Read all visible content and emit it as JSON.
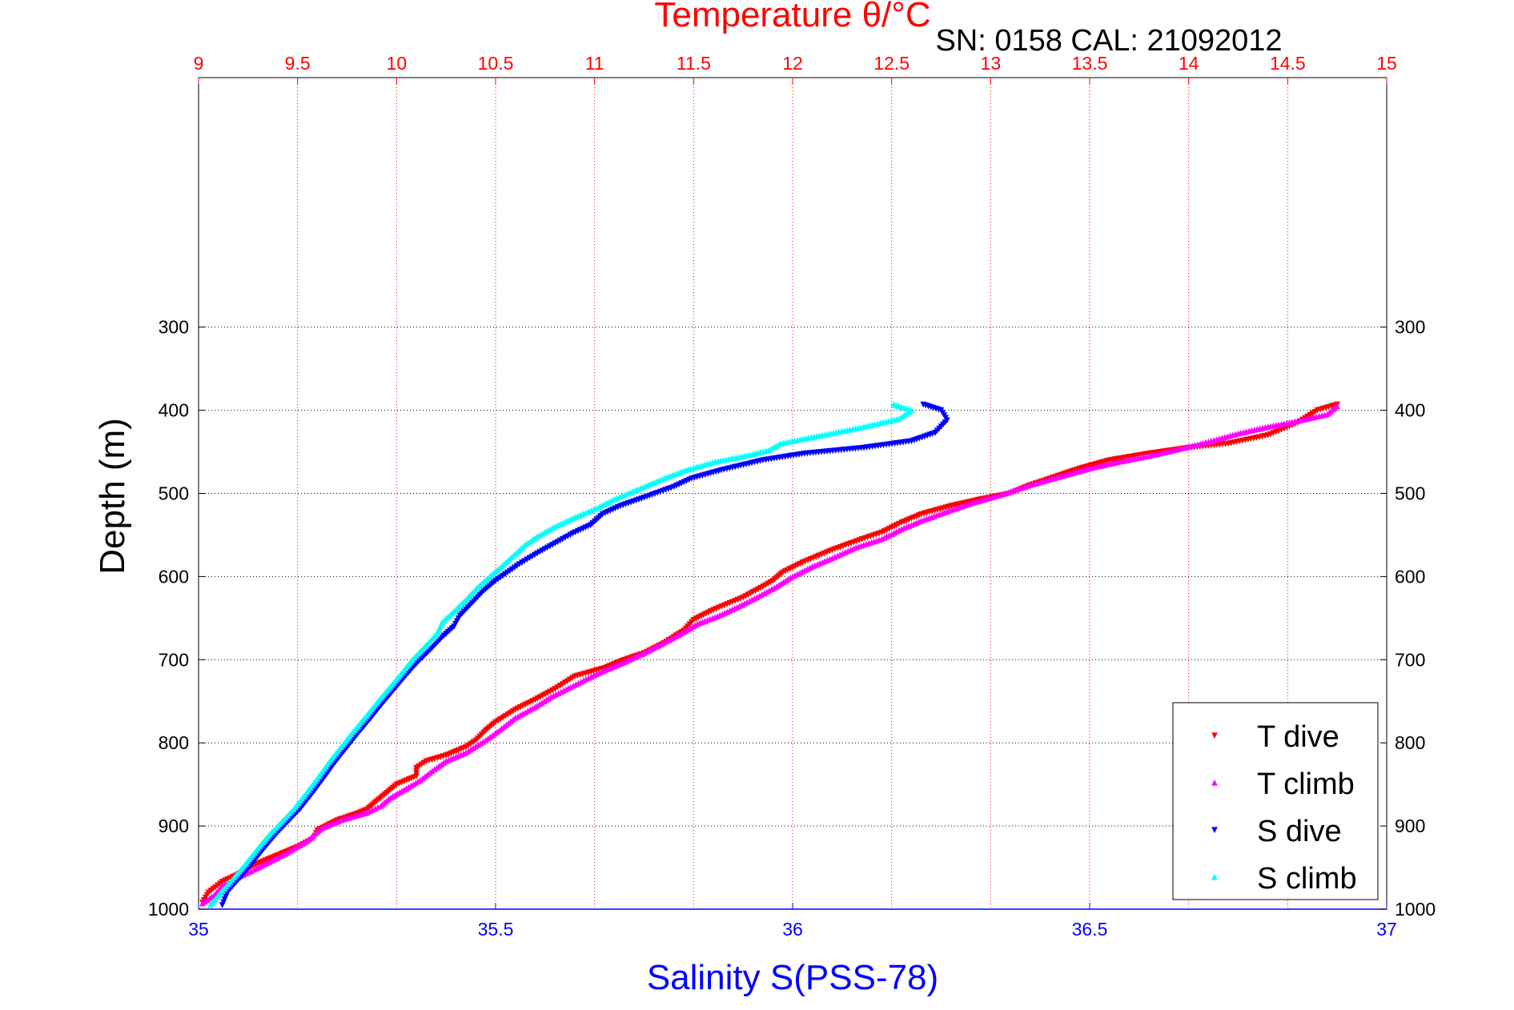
{
  "chart_data": {
    "type": "scatter",
    "title": "Temperature θ/°C",
    "subtitle": "SN: 0158  CAL: 21092012",
    "xlabel": "Salinity S(PSS-78)",
    "ylabel": "Depth (m)",
    "x_bottom": {
      "label": "Salinity S(PSS-78)",
      "range": [
        35,
        37
      ],
      "ticks": [
        35,
        35.5,
        36,
        36.5,
        37
      ],
      "tick_labels": [
        "35",
        "35.5",
        "36",
        "36.5",
        "37"
      ],
      "color": "#0000ff"
    },
    "x_top": {
      "label": "Temperature θ/°C",
      "range": [
        9,
        15
      ],
      "ticks": [
        9,
        9.5,
        10,
        10.5,
        11,
        11.5,
        12,
        12.5,
        13,
        13.5,
        14,
        14.5,
        15
      ],
      "tick_labels": [
        "9",
        "9.5",
        "10",
        "10.5",
        "11",
        "11.5",
        "12",
        "12.5",
        "13",
        "13.5",
        "14",
        "14.5",
        "15"
      ],
      "color": "#ff0000"
    },
    "y_axis": {
      "range": [
        0,
        1000
      ],
      "inverted": true,
      "ticks": [
        300,
        400,
        500,
        600,
        700,
        800,
        900,
        1000
      ],
      "tick_labels": [
        "300",
        "400",
        "500",
        "600",
        "700",
        "800",
        "900",
        "1000"
      ]
    },
    "grid": true,
    "legend_position": "bottom-right",
    "series": [
      {
        "name": "T dive",
        "axis": "top",
        "color": "#ff0000",
        "marker": "triangle-down",
        "points": [
          [
            14.75,
            393
          ],
          [
            14.65,
            400
          ],
          [
            14.55,
            415
          ],
          [
            14.4,
            430
          ],
          [
            14.2,
            440
          ],
          [
            14.0,
            445
          ],
          [
            13.8,
            452
          ],
          [
            13.6,
            460
          ],
          [
            13.45,
            470
          ],
          [
            13.3,
            482
          ],
          [
            13.2,
            490
          ],
          [
            13.1,
            500
          ],
          [
            12.95,
            507
          ],
          [
            12.8,
            515
          ],
          [
            12.65,
            525
          ],
          [
            12.55,
            535
          ],
          [
            12.45,
            547
          ],
          [
            12.35,
            555
          ],
          [
            12.2,
            568
          ],
          [
            12.05,
            583
          ],
          [
            11.95,
            595
          ],
          [
            11.9,
            605
          ],
          [
            11.85,
            612
          ],
          [
            11.75,
            625
          ],
          [
            11.6,
            640
          ],
          [
            11.5,
            652
          ],
          [
            11.45,
            665
          ],
          [
            11.35,
            680
          ],
          [
            11.25,
            692
          ],
          [
            11.15,
            700
          ],
          [
            11.05,
            710
          ],
          [
            10.9,
            720
          ],
          [
            10.8,
            735
          ],
          [
            10.7,
            748
          ],
          [
            10.6,
            760
          ],
          [
            10.5,
            775
          ],
          [
            10.45,
            785
          ],
          [
            10.4,
            797
          ],
          [
            10.35,
            805
          ],
          [
            10.25,
            815
          ],
          [
            10.15,
            822
          ],
          [
            10.1,
            830
          ],
          [
            10.1,
            840
          ],
          [
            10.0,
            850
          ],
          [
            9.95,
            860
          ],
          [
            9.9,
            870
          ],
          [
            9.85,
            880
          ],
          [
            9.8,
            885
          ],
          [
            9.7,
            893
          ],
          [
            9.6,
            905
          ],
          [
            9.58,
            915
          ],
          [
            9.5,
            925
          ],
          [
            9.4,
            935
          ],
          [
            9.3,
            945
          ],
          [
            9.2,
            958
          ],
          [
            9.12,
            967
          ],
          [
            9.05,
            980
          ],
          [
            9.02,
            992
          ]
        ]
      },
      {
        "name": "T climb",
        "axis": "top",
        "color": "#ff00ff",
        "marker": "triangle-up",
        "points": [
          [
            9.02,
            993
          ],
          [
            9.08,
            983
          ],
          [
            9.12,
            972
          ],
          [
            9.2,
            962
          ],
          [
            9.32,
            948
          ],
          [
            9.45,
            932
          ],
          [
            9.55,
            918
          ],
          [
            9.62,
            903
          ],
          [
            9.72,
            893
          ],
          [
            9.85,
            884
          ],
          [
            9.92,
            876
          ],
          [
            9.97,
            866
          ],
          [
            10.05,
            855
          ],
          [
            10.12,
            845
          ],
          [
            10.18,
            834
          ],
          [
            10.25,
            822
          ],
          [
            10.35,
            812
          ],
          [
            10.45,
            797
          ],
          [
            10.52,
            785
          ],
          [
            10.6,
            770
          ],
          [
            10.7,
            757
          ],
          [
            10.78,
            745
          ],
          [
            10.88,
            733
          ],
          [
            10.97,
            722
          ],
          [
            11.05,
            713
          ],
          [
            11.15,
            703
          ],
          [
            11.25,
            692
          ],
          [
            11.35,
            680
          ],
          [
            11.45,
            667
          ],
          [
            11.52,
            657
          ],
          [
            11.62,
            648
          ],
          [
            11.72,
            637
          ],
          [
            11.82,
            625
          ],
          [
            11.92,
            612
          ],
          [
            12.0,
            600
          ],
          [
            12.1,
            588
          ],
          [
            12.2,
            578
          ],
          [
            12.32,
            565
          ],
          [
            12.45,
            555
          ],
          [
            12.55,
            543
          ],
          [
            12.65,
            533
          ],
          [
            12.78,
            522
          ],
          [
            12.9,
            512
          ],
          [
            13.05,
            502
          ],
          [
            13.2,
            490
          ],
          [
            13.35,
            480
          ],
          [
            13.5,
            470
          ],
          [
            13.65,
            462
          ],
          [
            13.8,
            455
          ],
          [
            13.95,
            447
          ],
          [
            14.1,
            438
          ],
          [
            14.25,
            428
          ],
          [
            14.4,
            420
          ],
          [
            14.55,
            413
          ],
          [
            14.7,
            405
          ],
          [
            14.75,
            395
          ]
        ]
      },
      {
        "name": "S dive",
        "axis": "bottom",
        "color": "#0000ff",
        "marker": "triangle-down",
        "points": [
          [
            36.22,
            393
          ],
          [
            36.25,
            400
          ],
          [
            36.26,
            412
          ],
          [
            36.24,
            427
          ],
          [
            36.2,
            437
          ],
          [
            36.12,
            445
          ],
          [
            36.02,
            452
          ],
          [
            35.95,
            460
          ],
          [
            35.88,
            472
          ],
          [
            35.83,
            482
          ],
          [
            35.8,
            492
          ],
          [
            35.75,
            505
          ],
          [
            35.71,
            515
          ],
          [
            35.68,
            525
          ],
          [
            35.66,
            538
          ],
          [
            35.63,
            548
          ],
          [
            35.6,
            560
          ],
          [
            35.57,
            572
          ],
          [
            35.54,
            585
          ],
          [
            35.52,
            595
          ],
          [
            35.5,
            605
          ],
          [
            35.48,
            617
          ],
          [
            35.46,
            632
          ],
          [
            35.44,
            647
          ],
          [
            35.43,
            660
          ],
          [
            35.41,
            673
          ],
          [
            35.39,
            688
          ],
          [
            35.37,
            702
          ],
          [
            35.35,
            718
          ],
          [
            35.33,
            735
          ],
          [
            35.31,
            752
          ],
          [
            35.29,
            770
          ],
          [
            35.27,
            787
          ],
          [
            35.25,
            805
          ],
          [
            35.23,
            823
          ],
          [
            35.21,
            843
          ],
          [
            35.19,
            862
          ],
          [
            35.17,
            880
          ],
          [
            35.15,
            895
          ],
          [
            35.13,
            910
          ],
          [
            35.11,
            927
          ],
          [
            35.09,
            945
          ],
          [
            35.07,
            962
          ],
          [
            35.05,
            978
          ],
          [
            35.04,
            995
          ]
        ]
      },
      {
        "name": "S climb",
        "axis": "bottom",
        "color": "#00ffff",
        "marker": "triangle-up",
        "points": [
          [
            35.02,
            995
          ],
          [
            35.04,
            978
          ],
          [
            35.06,
            962
          ],
          [
            35.08,
            945
          ],
          [
            35.1,
            927
          ],
          [
            35.12,
            910
          ],
          [
            35.14,
            895
          ],
          [
            35.16,
            880
          ],
          [
            35.18,
            862
          ],
          [
            35.2,
            843
          ],
          [
            35.22,
            823
          ],
          [
            35.24,
            805
          ],
          [
            35.26,
            787
          ],
          [
            35.28,
            770
          ],
          [
            35.3,
            752
          ],
          [
            35.32,
            735
          ],
          [
            35.34,
            718
          ],
          [
            35.36,
            700
          ],
          [
            35.38,
            685
          ],
          [
            35.4,
            670
          ],
          [
            35.41,
            655
          ],
          [
            35.43,
            642
          ],
          [
            35.45,
            628
          ],
          [
            35.47,
            613
          ],
          [
            35.49,
            600
          ],
          [
            35.51,
            588
          ],
          [
            35.53,
            575
          ],
          [
            35.55,
            562
          ],
          [
            35.57,
            552
          ],
          [
            35.6,
            540
          ],
          [
            35.63,
            530
          ],
          [
            35.67,
            518
          ],
          [
            35.7,
            507
          ],
          [
            35.74,
            495
          ],
          [
            35.78,
            483
          ],
          [
            35.82,
            472
          ],
          [
            35.87,
            462
          ],
          [
            35.92,
            455
          ],
          [
            35.96,
            448
          ],
          [
            35.98,
            440
          ],
          [
            36.05,
            430
          ],
          [
            36.12,
            420
          ],
          [
            36.18,
            410
          ],
          [
            36.2,
            400
          ],
          [
            36.17,
            393
          ]
        ]
      }
    ]
  }
}
